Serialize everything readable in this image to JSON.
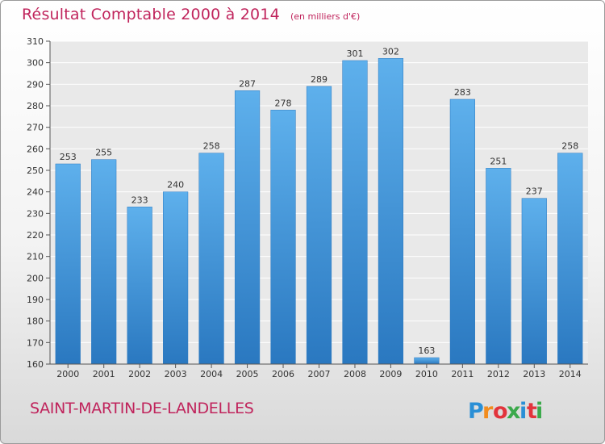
{
  "header": {
    "title": "Résultat Comptable 2000 à 2014",
    "unit": "(en milliers d'€)"
  },
  "footer": {
    "commune": "SAINT-MARTIN-DE-LANDELLES",
    "brand_colors": [
      "#2a8fd6",
      "#f28c1e",
      "#e2343c",
      "#3ba94b",
      "#2a8fd6",
      "#e2343c",
      "#3ba94b"
    ]
  },
  "logo": {
    "text": "Proxiti"
  },
  "colors": {
    "title": "#c0245c",
    "bar_top": "#5eb0ec",
    "bar_bottom": "#2a78c0",
    "plot_bg": "#e9e9e9",
    "grid": "#ffffff"
  },
  "chart_data": {
    "type": "bar",
    "title": "Résultat Comptable 2000 à 2014",
    "subtitle": "(en milliers d'€)",
    "xlabel": "",
    "ylabel": "",
    "categories": [
      "2000",
      "2001",
      "2002",
      "2003",
      "2004",
      "2005",
      "2006",
      "2007",
      "2008",
      "2009",
      "2010",
      "2011",
      "2012",
      "2013",
      "2014"
    ],
    "values": [
      253,
      255,
      233,
      240,
      258,
      287,
      278,
      289,
      301,
      302,
      163,
      283,
      251,
      237,
      258
    ],
    "ylim": [
      160,
      310
    ],
    "yticks": [
      160,
      170,
      180,
      190,
      200,
      210,
      220,
      230,
      240,
      250,
      260,
      270,
      280,
      290,
      300,
      310
    ],
    "grid": true,
    "data_labels": true,
    "legend": "none"
  }
}
